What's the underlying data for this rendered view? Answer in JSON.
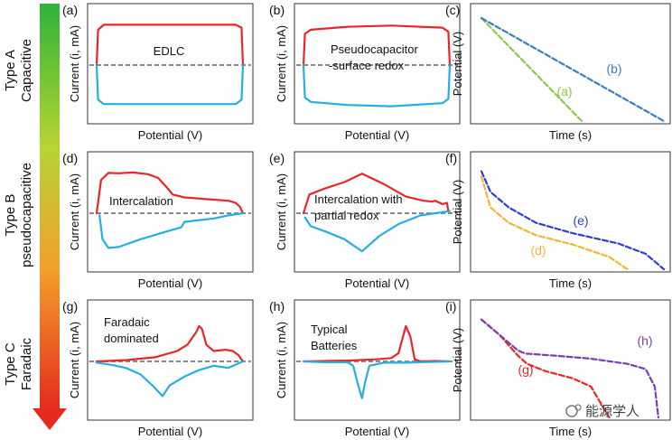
{
  "colors": {
    "red": "#e8262a",
    "blue": "#27aee0",
    "gray_dashed": "#888888",
    "green": "#8cc84b",
    "dash_blue": "#3a7fc1",
    "yellow": "#f2b634",
    "navy": "#2b3fd0",
    "purple": "#7a3fb0"
  },
  "rows": [
    {
      "type": "Type A",
      "name": "Capacitive"
    },
    {
      "type": "Type B",
      "name": "pseudocapacitive"
    },
    {
      "type": "Type C",
      "name": "Faradaic"
    }
  ],
  "axis": {
    "current": "Current (i, mA)",
    "potential_x": "Potential (V)",
    "potential_y": "Potential (V)",
    "time": "Time (s)"
  },
  "watermark": "能源学人",
  "chart_data": [
    {
      "id": "a",
      "label": "(a)",
      "type": "line",
      "note": "EDLC",
      "xlabel": "Potential (V)",
      "ylabel": "Current (i, mA)",
      "series": [
        {
          "color": "red",
          "x": [
            0.0,
            0.01,
            0.05,
            0.5,
            0.95,
            0.99,
            1.0
          ],
          "y": [
            0.0,
            0.85,
            0.97,
            0.97,
            0.97,
            0.9,
            0.0
          ]
        },
        {
          "color": "blue",
          "x": [
            0.0,
            0.01,
            0.05,
            0.5,
            0.95,
            0.99,
            1.0
          ],
          "y": [
            0.0,
            -0.8,
            -0.9,
            -0.9,
            -0.9,
            -0.8,
            0.0
          ]
        }
      ]
    },
    {
      "id": "b",
      "label": "(b)",
      "type": "line",
      "note": "Pseudocapacitor -surface redox",
      "xlabel": "Potential (V)",
      "ylabel": "Current (i, mA)",
      "series": [
        {
          "color": "red",
          "x": [
            0.0,
            0.01,
            0.05,
            0.3,
            0.6,
            0.95,
            0.99,
            1.0
          ],
          "y": [
            0.0,
            0.75,
            0.85,
            0.92,
            0.95,
            0.9,
            0.8,
            0.0
          ]
        },
        {
          "color": "blue",
          "x": [
            0.0,
            0.01,
            0.05,
            0.3,
            0.6,
            0.95,
            0.99,
            1.0
          ],
          "y": [
            0.0,
            -0.75,
            -0.85,
            -0.92,
            -0.95,
            -0.88,
            -0.78,
            0.0
          ]
        }
      ]
    },
    {
      "id": "c",
      "label": "(c)",
      "type": "line",
      "xlabel": "Time (s)",
      "ylabel": "Potential (V)",
      "series": [
        {
          "name": "(a)",
          "color": "green",
          "x": [
            0.0,
            0.55
          ],
          "y": [
            1.0,
            0.0
          ]
        },
        {
          "name": "(b)",
          "color": "dash_blue",
          "x": [
            0.0,
            1.0
          ],
          "y": [
            1.0,
            0.0
          ]
        }
      ]
    },
    {
      "id": "d",
      "label": "(d)",
      "type": "line",
      "note": "Intercalation",
      "xlabel": "Potential (V)",
      "ylabel": "Current (i, mA)",
      "series": [
        {
          "color": "red",
          "x": [
            0.0,
            0.03,
            0.08,
            0.15,
            0.25,
            0.35,
            0.42,
            0.48,
            0.52,
            0.6,
            0.75,
            0.9,
            0.95,
            0.98,
            1.0
          ],
          "y": [
            0.0,
            0.8,
            0.97,
            0.96,
            0.98,
            0.94,
            0.85,
            0.62,
            0.45,
            0.38,
            0.34,
            0.3,
            0.25,
            0.15,
            0.0
          ]
        },
        {
          "color": "blue",
          "x": [
            1.0,
            0.9,
            0.8,
            0.6,
            0.58,
            0.45,
            0.3,
            0.15,
            0.08,
            0.04,
            0.02
          ],
          "y": [
            0.0,
            -0.05,
            -0.12,
            -0.2,
            -0.32,
            -0.45,
            -0.6,
            -0.78,
            -0.8,
            -0.6,
            -0.05
          ]
        }
      ]
    },
    {
      "id": "e",
      "label": "(e)",
      "type": "line",
      "note": "Intercalation with partial redox",
      "xlabel": "Potential (V)",
      "ylabel": "Current (i, mA)",
      "series": [
        {
          "color": "red",
          "x": [
            0.0,
            0.04,
            0.15,
            0.28,
            0.4,
            0.55,
            0.7,
            0.82,
            0.88,
            0.9,
            0.95,
            0.98,
            0.99
          ],
          "y": [
            0.0,
            0.45,
            0.6,
            0.75,
            0.95,
            0.7,
            0.4,
            0.3,
            0.28,
            0.3,
            0.22,
            0.25,
            0.05
          ]
        },
        {
          "color": "blue",
          "x": [
            1.0,
            0.8,
            0.65,
            0.52,
            0.4,
            0.28,
            0.15,
            0.05,
            0.01
          ],
          "y": [
            0.05,
            -0.05,
            -0.25,
            -0.52,
            -0.88,
            -0.6,
            -0.42,
            -0.3,
            -0.1
          ]
        }
      ]
    },
    {
      "id": "f",
      "label": "(f)",
      "type": "line",
      "xlabel": "Time (s)",
      "ylabel": "Potential (V)",
      "series": [
        {
          "name": "(d)",
          "color": "yellow",
          "x": [
            0.0,
            0.05,
            0.15,
            0.3,
            0.5,
            0.7,
            0.8
          ],
          "y": [
            0.9,
            0.6,
            0.45,
            0.33,
            0.24,
            0.12,
            0.0
          ]
        },
        {
          "name": "(e)",
          "color": "navy",
          "x": [
            0.0,
            0.05,
            0.15,
            0.3,
            0.5,
            0.75,
            0.9,
            1.0
          ],
          "y": [
            0.95,
            0.75,
            0.6,
            0.45,
            0.35,
            0.25,
            0.15,
            0.0
          ]
        }
      ]
    },
    {
      "id": "g",
      "label": "(g)",
      "type": "line",
      "note": "Faradaic dominated",
      "xlabel": "Potential (V)",
      "ylabel": "Current (i, mA)",
      "series": [
        {
          "color": "red",
          "x": [
            0.0,
            0.2,
            0.4,
            0.55,
            0.62,
            0.68,
            0.7,
            0.72,
            0.75,
            0.8,
            0.88,
            0.93,
            0.97,
            1.0
          ],
          "y": [
            0.0,
            0.03,
            0.1,
            0.25,
            0.4,
            0.7,
            0.85,
            0.78,
            0.4,
            0.25,
            0.28,
            0.25,
            0.15,
            0.0
          ]
        },
        {
          "color": "blue",
          "x": [
            1.0,
            0.9,
            0.8,
            0.7,
            0.6,
            0.5,
            0.45,
            0.38,
            0.3,
            0.2,
            0.1,
            0.0
          ],
          "y": [
            0.0,
            -0.15,
            -0.1,
            -0.2,
            -0.35,
            -0.55,
            -0.8,
            -0.55,
            -0.3,
            -0.15,
            -0.08,
            -0.03
          ]
        }
      ]
    },
    {
      "id": "h",
      "label": "(h)",
      "type": "line",
      "note": "Typical Batteries",
      "xlabel": "Potential (V)",
      "ylabel": "Current (i, mA)",
      "series": [
        {
          "color": "red",
          "x": [
            0.0,
            0.3,
            0.5,
            0.6,
            0.65,
            0.68,
            0.7,
            0.73,
            0.76,
            0.8,
            0.9,
            1.0
          ],
          "y": [
            0.0,
            0.02,
            0.05,
            0.08,
            0.2,
            0.6,
            0.85,
            0.6,
            0.05,
            0.0,
            0.01,
            0.0
          ]
        },
        {
          "color": "blue",
          "x": [
            1.0,
            0.7,
            0.55,
            0.45,
            0.42,
            0.4,
            0.37,
            0.34,
            0.3,
            0.15,
            0.0
          ],
          "y": [
            0.0,
            -0.03,
            -0.03,
            -0.1,
            -0.5,
            -0.85,
            -0.5,
            -0.1,
            -0.02,
            -0.02,
            0.0
          ]
        }
      ]
    },
    {
      "id": "i",
      "label": "(i)",
      "type": "line",
      "xlabel": "Time (s)",
      "ylabel": "Potential (V)",
      "series": [
        {
          "name": "(g)",
          "color": "red",
          "x": [
            0.0,
            0.1,
            0.2,
            0.25,
            0.35,
            0.5,
            0.6,
            0.65,
            0.7
          ],
          "y": [
            0.95,
            0.8,
            0.6,
            0.52,
            0.45,
            0.38,
            0.3,
            0.15,
            0.0
          ]
        },
        {
          "name": "(h)",
          "color": "purple",
          "x": [
            0.0,
            0.1,
            0.2,
            0.24,
            0.4,
            0.6,
            0.8,
            0.9,
            0.95,
            0.97
          ],
          "y": [
            0.95,
            0.8,
            0.65,
            0.62,
            0.6,
            0.57,
            0.52,
            0.47,
            0.3,
            0.0
          ]
        }
      ]
    }
  ]
}
